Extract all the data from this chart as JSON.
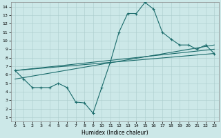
{
  "xlabel": "Humidex (Indice chaleur)",
  "bg_color": "#cce8e8",
  "grid_color": "#aacccc",
  "line_color": "#1a6b6b",
  "xlim": [
    -0.5,
    23.5
  ],
  "ylim": [
    0.5,
    14.5
  ],
  "xticks": [
    0,
    1,
    2,
    3,
    4,
    5,
    6,
    7,
    8,
    9,
    10,
    11,
    12,
    13,
    14,
    15,
    16,
    17,
    18,
    19,
    20,
    21,
    22,
    23
  ],
  "yticks": [
    1,
    2,
    3,
    4,
    5,
    6,
    7,
    8,
    9,
    10,
    11,
    12,
    13,
    14
  ],
  "line1_x": [
    0,
    1,
    2,
    3,
    4,
    5,
    6,
    7,
    8,
    9,
    10,
    11,
    12,
    13,
    14,
    15,
    16,
    17,
    18,
    19,
    20,
    21,
    22,
    23
  ],
  "line1_y": [
    6.5,
    5.5,
    4.5,
    4.5,
    4.5,
    5.0,
    4.5,
    2.8,
    2.7,
    1.5,
    4.5,
    7.5,
    11.0,
    13.2,
    13.2,
    14.5,
    13.7,
    11.0,
    10.2,
    9.5,
    9.5,
    9.0,
    9.5,
    8.5
  ],
  "line2_x": [
    0,
    23
  ],
  "line2_y": [
    6.5,
    8.5
  ],
  "line3_x": [
    0,
    23
  ],
  "line3_y": [
    5.5,
    9.5
  ],
  "line4_x": [
    0,
    23
  ],
  "line4_y": [
    6.5,
    9.0
  ]
}
